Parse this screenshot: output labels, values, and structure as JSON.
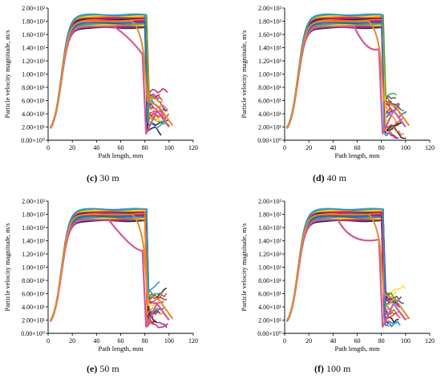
{
  "charts": [
    {
      "caption_letter": "(c)",
      "caption_text": " 30 m",
      "dip": {
        "start": 55,
        "mid": 68,
        "low": 1.6,
        "end": 1.3
      }
    },
    {
      "caption_letter": "(d)",
      "caption_text": " 40 m",
      "dip": {
        "start": 58,
        "mid": 68,
        "low": 1.36,
        "end": 1.38
      }
    },
    {
      "caption_letter": "(e)",
      "caption_text": " 50 m",
      "dip": {
        "start": 50,
        "mid": 70,
        "low": 1.3,
        "end": 1.25
      }
    },
    {
      "caption_letter": "(f)",
      "caption_text": " 100 m",
      "dip": {
        "start": 45,
        "mid": 55,
        "low": 1.38,
        "end": 1.42
      }
    }
  ],
  "chart_data": [
    {
      "type": "line",
      "title": "(c) 30 m",
      "xlabel": "Path length, mm",
      "ylabel": "Particle velocity magnitude, m/s",
      "xlim": [
        0,
        120
      ],
      "ylim": [
        0,
        2.0
      ],
      "y_scale": "x10^2",
      "xticks": [
        "0",
        "20",
        "40",
        "60",
        "80",
        "100",
        "120"
      ],
      "yticks": [
        "0.00×10⁰",
        "2.00×10¹",
        "4.00×10¹",
        "6.00×10¹",
        "8.00×10¹",
        "1.00×10²",
        "1.20×10²",
        "1.40×10²",
        "1.60×10²",
        "1.80×10²",
        "2.00×10²"
      ],
      "series_note": "many particle tracks; velocity rises from ~10 m/s to 170–190 m/s by ~30 mm, plateaus until ~80 mm, then drops to 5–70 m/s scattered up to ~105 mm",
      "plateau_range": [
        170,
        190
      ],
      "drop_x": 82
    },
    {
      "type": "line",
      "title": "(d) 40 m",
      "xlabel": "Path length, mm",
      "ylabel": "Particle velocity magnitude, m/s",
      "xlim": [
        0,
        120
      ],
      "ylim": [
        0,
        2.0
      ],
      "xticks": [
        "0",
        "20",
        "40",
        "60",
        "80",
        "100",
        "120"
      ],
      "yticks": [
        "0.00×10⁰",
        "2.00×10¹",
        "4.00×10¹",
        "6.00×10¹",
        "8.00×10¹",
        "1.00×10²",
        "1.20×10²",
        "1.40×10²",
        "1.60×10²",
        "1.80×10²",
        "2.00×10²"
      ],
      "plateau_range": [
        170,
        190
      ],
      "drop_x": 82
    },
    {
      "type": "line",
      "title": "(e) 50 m",
      "xlabel": "Path length, mm",
      "ylabel": "Particle velocity magnitude, m/s",
      "xlim": [
        0,
        120
      ],
      "ylim": [
        0,
        2.0
      ],
      "xticks": [
        "0",
        "20",
        "40",
        "60",
        "80",
        "100",
        "120"
      ],
      "yticks": [
        "0.00×10⁰",
        "2.00×10¹",
        "4.00×10¹",
        "6.00×10¹",
        "8.00×10¹",
        "1.00×10²",
        "1.20×10²",
        "1.40×10²",
        "1.60×10²",
        "1.80×10²",
        "2.00×10²"
      ],
      "plateau_range": [
        170,
        188
      ],
      "drop_x": 82
    },
    {
      "type": "line",
      "title": "(f) 100 m",
      "xlabel": "Path length, mm",
      "ylabel": "Particle velocity magnitude, m/s",
      "xlim": [
        0,
        120
      ],
      "ylim": [
        0,
        2.0
      ],
      "xticks": [
        "0",
        "20",
        "40",
        "60",
        "80",
        "100",
        "120"
      ],
      "yticks": [
        "0.00×10⁰",
        "2.00×10¹",
        "4.00×10¹",
        "6.00×10¹",
        "8.00×10¹",
        "1.00×10²",
        "1.20×10²",
        "1.40×10²",
        "1.60×10²",
        "1.80×10²",
        "2.00×10²"
      ],
      "plateau_range": [
        170,
        188
      ],
      "drop_x": 82
    }
  ],
  "colors": {
    "axis": "#000000",
    "tracks": [
      "#1a1a1a",
      "#7b1fa2",
      "#c2185b",
      "#e53935",
      "#fb8c00",
      "#fdd835",
      "#43a047",
      "#1e88e5",
      "#3949ab",
      "#00897b",
      "#6d4c41",
      "#8e24aa",
      "#d81b60",
      "#ff7043"
    ],
    "pink_track": "#d05a9a",
    "orange_track": "#e6892b"
  }
}
